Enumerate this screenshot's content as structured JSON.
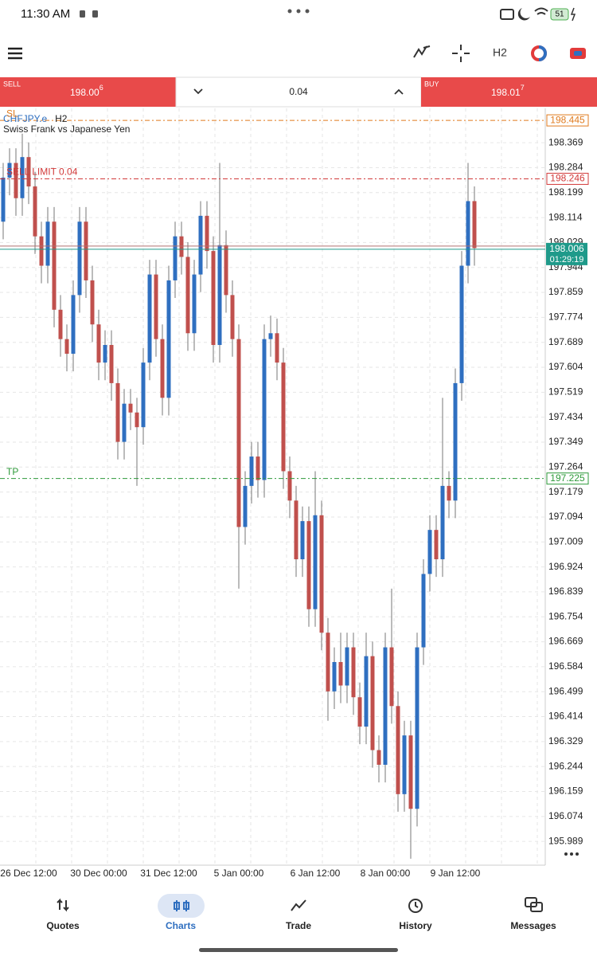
{
  "status_bar": {
    "time": "11:30 AM",
    "battery": "51"
  },
  "toolbar": {
    "timeframe": "H2"
  },
  "trade_bar": {
    "sell_label": "SELL",
    "sell_price": "198.00",
    "sell_price_sup": "6",
    "volume": "0.04",
    "buy_label": "BUY",
    "buy_price": "198.01",
    "buy_price_sup": "7"
  },
  "chart_data": {
    "type": "candlestick",
    "symbol": "CHFJPY.e",
    "timeframe": "H2",
    "subtitle": "Swiss Frank vs Japanese Yen",
    "up_color": "#2f6fc0",
    "down_color": "#c0504d",
    "grid": true,
    "categories": [
      null,
      null,
      null,
      null,
      "26 Dec 12:00",
      null,
      null,
      null,
      null,
      null,
      null,
      null,
      null,
      null,
      null,
      "30 Dec 00:00",
      null,
      null,
      null,
      null,
      null,
      null,
      null,
      null,
      null,
      null,
      "31 Dec 12:00",
      null,
      null,
      null,
      null,
      null,
      null,
      null,
      null,
      null,
      null,
      "5 Jan 00:00",
      null,
      null,
      null,
      null,
      null,
      null,
      null,
      null,
      null,
      null,
      null,
      "6 Jan 12:00",
      null,
      null,
      null,
      null,
      null,
      null,
      null,
      null,
      null,
      null,
      "8 Jan 00:00",
      null,
      null,
      null,
      null,
      null,
      null,
      null,
      null,
      null,
      null,
      "9 Jan 12:00",
      null,
      null,
      null
    ],
    "candles": [
      {
        "o": 198.1,
        "h": 198.3,
        "l": 198.04,
        "c": 198.25
      },
      {
        "o": 198.25,
        "h": 198.35,
        "l": 198.19,
        "c": 198.3
      },
      {
        "o": 198.3,
        "h": 198.35,
        "l": 198.12,
        "c": 198.18
      },
      {
        "o": 198.18,
        "h": 198.4,
        "l": 198.12,
        "c": 198.32
      },
      {
        "o": 198.32,
        "h": 198.37,
        "l": 198.16,
        "c": 198.22
      },
      {
        "o": 198.22,
        "h": 198.27,
        "l": 197.99,
        "c": 198.05
      },
      {
        "o": 198.05,
        "h": 198.1,
        "l": 197.89,
        "c": 197.95
      },
      {
        "o": 197.95,
        "h": 198.15,
        "l": 197.89,
        "c": 198.1
      },
      {
        "o": 198.1,
        "h": 198.15,
        "l": 197.74,
        "c": 197.8
      },
      {
        "o": 197.8,
        "h": 197.85,
        "l": 197.64,
        "c": 197.7
      },
      {
        "o": 197.7,
        "h": 197.75,
        "l": 197.59,
        "c": 197.65
      },
      {
        "o": 197.65,
        "h": 197.9,
        "l": 197.59,
        "c": 197.85
      },
      {
        "o": 197.85,
        "h": 198.15,
        "l": 197.79,
        "c": 198.1
      },
      {
        "o": 198.1,
        "h": 198.15,
        "l": 197.84,
        "c": 197.9
      },
      {
        "o": 197.9,
        "h": 197.95,
        "l": 197.69,
        "c": 197.75
      },
      {
        "o": 197.75,
        "h": 197.8,
        "l": 197.56,
        "c": 197.62
      },
      {
        "o": 197.62,
        "h": 197.73,
        "l": 197.56,
        "c": 197.68
      },
      {
        "o": 197.68,
        "h": 197.73,
        "l": 197.49,
        "c": 197.55
      },
      {
        "o": 197.55,
        "h": 197.6,
        "l": 197.29,
        "c": 197.35
      },
      {
        "o": 197.35,
        "h": 197.53,
        "l": 197.29,
        "c": 197.48
      },
      {
        "o": 197.48,
        "h": 197.53,
        "l": 197.39,
        "c": 197.45
      },
      {
        "o": 197.45,
        "h": 197.5,
        "l": 197.2,
        "c": 197.4
      },
      {
        "o": 197.4,
        "h": 197.67,
        "l": 197.34,
        "c": 197.62
      },
      {
        "o": 197.62,
        "h": 197.97,
        "l": 197.56,
        "c": 197.92
      },
      {
        "o": 197.92,
        "h": 197.97,
        "l": 197.64,
        "c": 197.7
      },
      {
        "o": 197.7,
        "h": 197.75,
        "l": 197.44,
        "c": 197.5
      },
      {
        "o": 197.5,
        "h": 197.95,
        "l": 197.44,
        "c": 197.9
      },
      {
        "o": 197.9,
        "h": 198.1,
        "l": 197.84,
        "c": 198.05
      },
      {
        "o": 198.05,
        "h": 198.1,
        "l": 197.92,
        "c": 197.98
      },
      {
        "o": 197.98,
        "h": 198.03,
        "l": 197.66,
        "c": 197.72
      },
      {
        "o": 197.72,
        "h": 197.97,
        "l": 197.66,
        "c": 197.92
      },
      {
        "o": 197.92,
        "h": 198.17,
        "l": 197.86,
        "c": 198.12
      },
      {
        "o": 198.12,
        "h": 198.17,
        "l": 197.94,
        "c": 198.0
      },
      {
        "o": 198.0,
        "h": 198.05,
        "l": 197.62,
        "c": 197.68
      },
      {
        "o": 197.68,
        "h": 198.3,
        "l": 197.62,
        "c": 198.02
      },
      {
        "o": 198.02,
        "h": 198.07,
        "l": 197.79,
        "c": 197.85
      },
      {
        "o": 197.85,
        "h": 197.9,
        "l": 197.64,
        "c": 197.7
      },
      {
        "o": 197.7,
        "h": 197.75,
        "l": 196.85,
        "c": 197.06
      },
      {
        "o": 197.06,
        "h": 197.25,
        "l": 197.0,
        "c": 197.2
      },
      {
        "o": 197.2,
        "h": 197.35,
        "l": 197.14,
        "c": 197.3
      },
      {
        "o": 197.3,
        "h": 197.35,
        "l": 197.16,
        "c": 197.22
      },
      {
        "o": 197.22,
        "h": 197.75,
        "l": 197.16,
        "c": 197.7
      },
      {
        "o": 197.7,
        "h": 197.78,
        "l": 197.64,
        "c": 197.72
      },
      {
        "o": 197.72,
        "h": 197.77,
        "l": 197.56,
        "c": 197.62
      },
      {
        "o": 197.62,
        "h": 197.67,
        "l": 197.19,
        "c": 197.25
      },
      {
        "o": 197.25,
        "h": 197.3,
        "l": 197.09,
        "c": 197.15
      },
      {
        "o": 197.15,
        "h": 197.2,
        "l": 196.89,
        "c": 196.95
      },
      {
        "o": 196.95,
        "h": 197.13,
        "l": 196.89,
        "c": 197.08
      },
      {
        "o": 197.08,
        "h": 197.13,
        "l": 196.72,
        "c": 196.78
      },
      {
        "o": 196.78,
        "h": 197.25,
        "l": 196.72,
        "c": 197.1
      },
      {
        "o": 197.1,
        "h": 197.15,
        "l": 196.64,
        "c": 196.7
      },
      {
        "o": 196.7,
        "h": 196.75,
        "l": 196.4,
        "c": 196.5
      },
      {
        "o": 196.5,
        "h": 196.65,
        "l": 196.44,
        "c": 196.6
      },
      {
        "o": 196.6,
        "h": 196.7,
        "l": 196.46,
        "c": 196.52
      },
      {
        "o": 196.52,
        "h": 196.7,
        "l": 196.46,
        "c": 196.65
      },
      {
        "o": 196.65,
        "h": 196.7,
        "l": 196.42,
        "c": 196.48
      },
      {
        "o": 196.48,
        "h": 196.53,
        "l": 196.32,
        "c": 196.38
      },
      {
        "o": 196.38,
        "h": 196.7,
        "l": 196.32,
        "c": 196.62
      },
      {
        "o": 196.62,
        "h": 196.67,
        "l": 196.24,
        "c": 196.3
      },
      {
        "o": 196.3,
        "h": 196.35,
        "l": 196.19,
        "c": 196.25
      },
      {
        "o": 196.25,
        "h": 196.7,
        "l": 196.19,
        "c": 196.65
      },
      {
        "o": 196.65,
        "h": 196.85,
        "l": 196.39,
        "c": 196.45
      },
      {
        "o": 196.45,
        "h": 196.5,
        "l": 196.09,
        "c": 196.15
      },
      {
        "o": 196.15,
        "h": 196.4,
        "l": 196.09,
        "c": 196.35
      },
      {
        "o": 196.35,
        "h": 196.4,
        "l": 195.93,
        "c": 196.1
      },
      {
        "o": 196.1,
        "h": 196.7,
        "l": 196.04,
        "c": 196.65
      },
      {
        "o": 196.65,
        "h": 196.95,
        "l": 196.59,
        "c": 196.9
      },
      {
        "o": 196.9,
        "h": 197.1,
        "l": 196.84,
        "c": 197.05
      },
      {
        "o": 197.05,
        "h": 197.1,
        "l": 196.89,
        "c": 196.95
      },
      {
        "o": 196.95,
        "h": 197.5,
        "l": 196.89,
        "c": 197.2
      },
      {
        "o": 197.2,
        "h": 197.25,
        "l": 197.09,
        "c": 197.15
      },
      {
        "o": 197.15,
        "h": 197.6,
        "l": 197.09,
        "c": 197.55
      },
      {
        "o": 197.55,
        "h": 198.0,
        "l": 197.49,
        "c": 197.95
      },
      {
        "o": 197.95,
        "h": 198.3,
        "l": 197.89,
        "c": 198.17
      },
      {
        "o": 198.17,
        "h": 198.22,
        "l": 197.95,
        "c": 198.01
      }
    ],
    "ylim": [
      195.908,
      198.486
    ],
    "yticks": [
      198.369,
      198.284,
      198.199,
      198.114,
      198.029,
      197.944,
      197.859,
      197.774,
      197.689,
      197.604,
      197.519,
      197.434,
      197.349,
      197.264,
      197.179,
      197.094,
      197.009,
      196.924,
      196.839,
      196.754,
      196.669,
      196.584,
      196.499,
      196.414,
      196.329,
      196.244,
      196.159,
      196.074,
      195.989
    ],
    "levels": [
      {
        "label": "SL",
        "value": 198.445,
        "color": "#e07b1f"
      },
      {
        "label": "SELL LIMIT 0.04",
        "value": 198.246,
        "color": "#d23a3a"
      },
      {
        "label": "TP",
        "value": 197.225,
        "color": "#2e9a3a"
      }
    ],
    "ask_line": {
      "value": 198.017,
      "color": "#b07070"
    },
    "bid": {
      "value": 198.006,
      "timer": "01:29:19",
      "color": "#1f9a8a"
    }
  },
  "nav": {
    "items": [
      "Quotes",
      "Charts",
      "Trade",
      "History",
      "Messages"
    ],
    "active": 1
  }
}
